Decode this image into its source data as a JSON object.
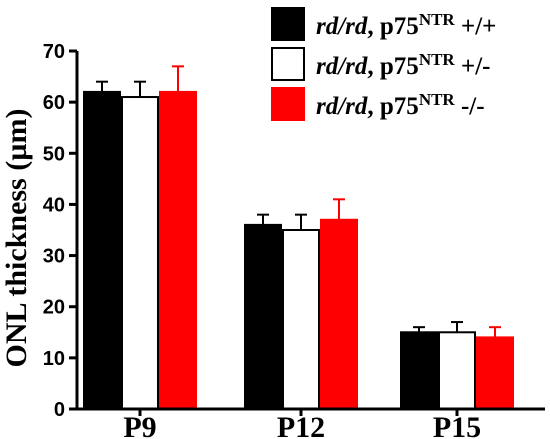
{
  "chart_data": {
    "type": "bar",
    "categories": [
      "P9",
      "P12",
      "P15"
    ],
    "ylabel": "ONL thickness (µm)",
    "xlabel": "",
    "ylim": [
      0,
      70
    ],
    "yticks": [
      "0",
      "10",
      "20",
      "30",
      "40",
      "50",
      "60",
      "70"
    ],
    "grid": false,
    "legend_position": "top-right",
    "series": [
      {
        "name": "rd/rd, p75NTR +/+",
        "legend": {
          "italic": "rd/rd",
          "text": ", p75",
          "sup": "NTR",
          "suffix": " +/+"
        },
        "color": "#000000",
        "stroke": "#000000",
        "values": [
          62,
          36,
          15
        ],
        "errors": [
          2,
          2,
          1
        ]
      },
      {
        "name": "rd/rd, p75NTR +/-",
        "legend": {
          "italic": "rd/rd",
          "text": ", p75",
          "sup": "NTR",
          "suffix": " +/-"
        },
        "color": "#ffffff",
        "stroke": "#000000",
        "values": [
          61,
          35,
          15
        ],
        "errors": [
          3,
          3,
          2
        ]
      },
      {
        "name": "rd/rd, p75NTR -/-",
        "legend": {
          "italic": "rd/rd",
          "text": ", p75",
          "sup": "NTR",
          "suffix": " -/-"
        },
        "color": "#ff0000",
        "stroke": "#ff0000",
        "values": [
          62,
          37,
          14
        ],
        "errors": [
          5,
          4,
          2
        ]
      }
    ]
  }
}
